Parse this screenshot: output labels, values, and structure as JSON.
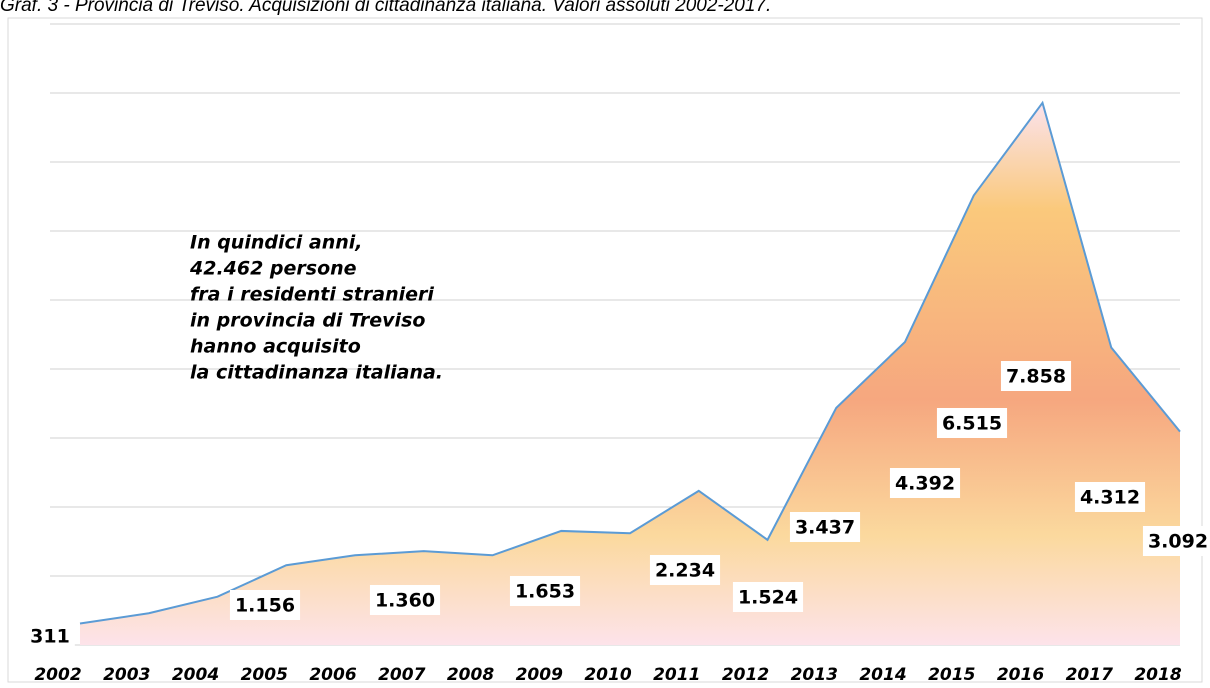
{
  "chart_data": {
    "type": "area",
    "title": "Graf. 3 - Provincia di Treviso. Acquisizioni di cittadinanza italiana. Valori assoluti 2002-2017.",
    "categories": [
      "2002",
      "2003",
      "2004",
      "2005",
      "2006",
      "2007",
      "2008",
      "2009",
      "2010",
      "2011",
      "2012",
      "2013",
      "2014",
      "2015",
      "2016",
      "2017",
      "2018"
    ],
    "values": [
      311,
      460,
      700,
      1156,
      1300,
      1360,
      1300,
      1653,
      1620,
      2234,
      1524,
      3437,
      4392,
      6515,
      7858,
      4312,
      3092
    ],
    "value_labels": [
      "311",
      null,
      null,
      "1.156",
      null,
      "1.360",
      null,
      "1.653",
      null,
      "2.234",
      "1.524",
      "3.437",
      "4.392",
      "6.515",
      "7.858",
      "4.312",
      "3.092"
    ],
    "color": "#5b9bd5",
    "ylim": [
      0,
      9000
    ],
    "yticks": [
      0,
      1000,
      2000,
      3000,
      4000,
      5000,
      6000,
      7000,
      8000,
      9000
    ],
    "grid": true,
    "annotation": [
      "In quindici anni,",
      "42.462 persone",
      "fra i residenti  stranieri",
      "in provincia di Treviso",
      "hanno acquisito",
      "la cittadinanza italiana."
    ]
  }
}
